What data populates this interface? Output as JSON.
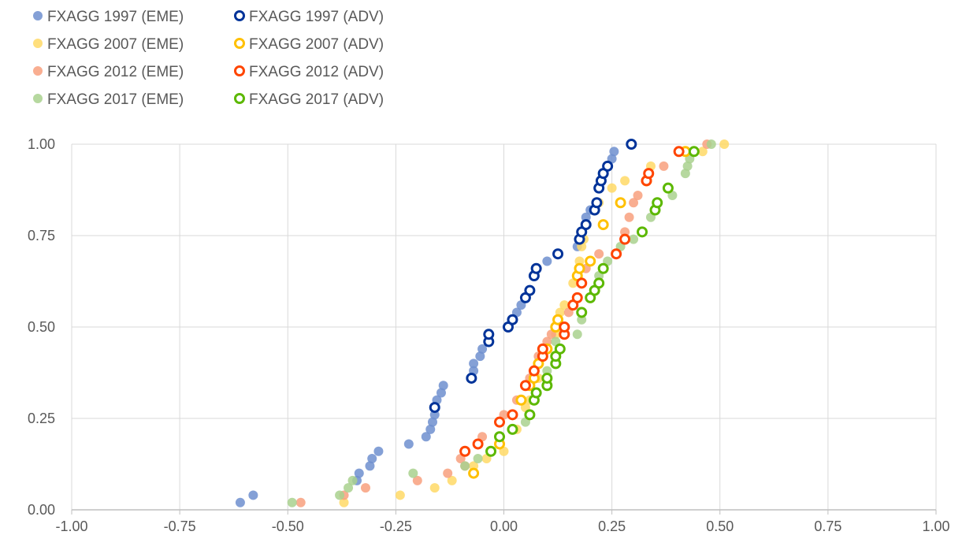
{
  "chart_data": {
    "type": "scatter",
    "title": "",
    "xlabel": "",
    "ylabel": "",
    "xlim": [
      -1.0,
      1.0
    ],
    "ylim": [
      0.0,
      1.0
    ],
    "xticks": [
      "-1.00",
      "-0.75",
      "-0.50",
      "-0.25",
      "0.00",
      "0.25",
      "0.50",
      "0.75",
      "1.00"
    ],
    "yticks": [
      "0.00",
      "0.25",
      "0.50",
      "0.75",
      "1.00"
    ],
    "grid": true,
    "legend_position": "top-left",
    "series": [
      {
        "name": "FXAGG 1997 (EME)",
        "color": "#6f8fcf",
        "marker": "filled",
        "points": [
          [
            -0.61,
            0.02
          ],
          [
            -0.58,
            0.04
          ],
          [
            -0.34,
            0.08
          ],
          [
            -0.335,
            0.1
          ],
          [
            -0.31,
            0.12
          ],
          [
            -0.305,
            0.14
          ],
          [
            -0.29,
            0.16
          ],
          [
            -0.22,
            0.18
          ],
          [
            -0.18,
            0.2
          ],
          [
            -0.17,
            0.22
          ],
          [
            -0.165,
            0.24
          ],
          [
            -0.16,
            0.26
          ],
          [
            -0.155,
            0.3
          ],
          [
            -0.145,
            0.32
          ],
          [
            -0.14,
            0.34
          ],
          [
            -0.07,
            0.38
          ],
          [
            -0.07,
            0.4
          ],
          [
            -0.055,
            0.42
          ],
          [
            -0.05,
            0.44
          ],
          [
            0.03,
            0.54
          ],
          [
            0.04,
            0.56
          ],
          [
            0.1,
            0.68
          ],
          [
            0.17,
            0.72
          ],
          [
            0.19,
            0.8
          ],
          [
            0.2,
            0.82
          ],
          [
            0.25,
            0.96
          ],
          [
            0.255,
            0.98
          ]
        ]
      },
      {
        "name": "FXAGG 1997 (ADV)",
        "color": "#003399",
        "marker": "ring",
        "points": [
          [
            -0.16,
            0.28
          ],
          [
            -0.075,
            0.36
          ],
          [
            -0.035,
            0.46
          ],
          [
            -0.035,
            0.48
          ],
          [
            0.01,
            0.5
          ],
          [
            0.02,
            0.52
          ],
          [
            0.05,
            0.58
          ],
          [
            0.06,
            0.6
          ],
          [
            0.07,
            0.64
          ],
          [
            0.075,
            0.66
          ],
          [
            0.125,
            0.7
          ],
          [
            0.175,
            0.74
          ],
          [
            0.18,
            0.76
          ],
          [
            0.19,
            0.78
          ],
          [
            0.21,
            0.82
          ],
          [
            0.215,
            0.84
          ],
          [
            0.22,
            0.88
          ],
          [
            0.225,
            0.9
          ],
          [
            0.23,
            0.92
          ],
          [
            0.24,
            0.94
          ],
          [
            0.295,
            1.0
          ]
        ]
      },
      {
        "name": "FXAGG 2007 (EME)",
        "color": "#ffd966",
        "marker": "filled",
        "points": [
          [
            -0.37,
            0.02
          ],
          [
            -0.24,
            0.04
          ],
          [
            -0.16,
            0.06
          ],
          [
            -0.12,
            0.08
          ],
          [
            -0.07,
            0.12
          ],
          [
            -0.04,
            0.14
          ],
          [
            0.0,
            0.16
          ],
          [
            0.03,
            0.22
          ],
          [
            0.05,
            0.28
          ],
          [
            0.06,
            0.3
          ],
          [
            0.08,
            0.36
          ],
          [
            0.1,
            0.44
          ],
          [
            0.12,
            0.48
          ],
          [
            0.13,
            0.54
          ],
          [
            0.14,
            0.56
          ],
          [
            0.16,
            0.62
          ],
          [
            0.175,
            0.68
          ],
          [
            0.18,
            0.72
          ],
          [
            0.185,
            0.74
          ],
          [
            0.22,
            0.84
          ],
          [
            0.25,
            0.88
          ],
          [
            0.28,
            0.9
          ],
          [
            0.34,
            0.94
          ],
          [
            0.46,
            0.98
          ],
          [
            0.51,
            1.0
          ]
        ]
      },
      {
        "name": "FXAGG 2007 (ADV)",
        "color": "#ffc000",
        "marker": "ring",
        "points": [
          [
            -0.07,
            0.1
          ],
          [
            -0.01,
            0.18
          ],
          [
            0.04,
            0.3
          ],
          [
            0.06,
            0.34
          ],
          [
            0.07,
            0.36
          ],
          [
            0.08,
            0.4
          ],
          [
            0.1,
            0.44
          ],
          [
            0.12,
            0.5
          ],
          [
            0.125,
            0.52
          ],
          [
            0.17,
            0.64
          ],
          [
            0.175,
            0.66
          ],
          [
            0.2,
            0.68
          ],
          [
            0.23,
            0.78
          ],
          [
            0.27,
            0.84
          ],
          [
            0.33,
            0.9
          ],
          [
            0.42,
            0.98
          ]
        ]
      },
      {
        "name": "FXAGG 2012 (EME)",
        "color": "#f8a07e",
        "marker": "filled",
        "points": [
          [
            -0.47,
            0.02
          ],
          [
            -0.37,
            0.04
          ],
          [
            -0.32,
            0.06
          ],
          [
            -0.2,
            0.08
          ],
          [
            -0.13,
            0.1
          ],
          [
            -0.09,
            0.12
          ],
          [
            -0.1,
            0.14
          ],
          [
            -0.05,
            0.2
          ],
          [
            0.0,
            0.26
          ],
          [
            0.03,
            0.3
          ],
          [
            0.06,
            0.36
          ],
          [
            0.08,
            0.42
          ],
          [
            0.1,
            0.46
          ],
          [
            0.11,
            0.48
          ],
          [
            0.15,
            0.54
          ],
          [
            0.16,
            0.56
          ],
          [
            0.19,
            0.66
          ],
          [
            0.2,
            0.68
          ],
          [
            0.22,
            0.7
          ],
          [
            0.28,
            0.76
          ],
          [
            0.29,
            0.8
          ],
          [
            0.3,
            0.84
          ],
          [
            0.31,
            0.86
          ],
          [
            0.37,
            0.94
          ],
          [
            0.47,
            1.0
          ]
        ]
      },
      {
        "name": "FXAGG 2012 (ADV)",
        "color": "#ff4500",
        "marker": "ring",
        "points": [
          [
            -0.09,
            0.16
          ],
          [
            -0.06,
            0.18
          ],
          [
            -0.01,
            0.24
          ],
          [
            0.02,
            0.26
          ],
          [
            0.05,
            0.34
          ],
          [
            0.07,
            0.38
          ],
          [
            0.09,
            0.42
          ],
          [
            0.09,
            0.44
          ],
          [
            0.14,
            0.48
          ],
          [
            0.14,
            0.5
          ],
          [
            0.16,
            0.56
          ],
          [
            0.17,
            0.58
          ],
          [
            0.18,
            0.62
          ],
          [
            0.26,
            0.7
          ],
          [
            0.28,
            0.74
          ],
          [
            0.33,
            0.9
          ],
          [
            0.335,
            0.92
          ],
          [
            0.405,
            0.98
          ]
        ]
      },
      {
        "name": "FXAGG 2017 (EME)",
        "color": "#a9d18e",
        "marker": "filled",
        "points": [
          [
            -0.49,
            0.02
          ],
          [
            -0.38,
            0.04
          ],
          [
            -0.36,
            0.06
          ],
          [
            -0.35,
            0.08
          ],
          [
            -0.21,
            0.1
          ],
          [
            -0.09,
            0.12
          ],
          [
            -0.06,
            0.14
          ],
          [
            0.02,
            0.22
          ],
          [
            0.05,
            0.24
          ],
          [
            0.07,
            0.3
          ],
          [
            0.1,
            0.38
          ],
          [
            0.12,
            0.46
          ],
          [
            0.17,
            0.48
          ],
          [
            0.18,
            0.52
          ],
          [
            0.22,
            0.64
          ],
          [
            0.24,
            0.68
          ],
          [
            0.27,
            0.72
          ],
          [
            0.3,
            0.74
          ],
          [
            0.34,
            0.8
          ],
          [
            0.39,
            0.86
          ],
          [
            0.42,
            0.92
          ],
          [
            0.425,
            0.94
          ],
          [
            0.43,
            0.96
          ],
          [
            0.48,
            1.0
          ]
        ]
      },
      {
        "name": "FXAGG 2017 (ADV)",
        "color": "#5cb800",
        "marker": "ring",
        "points": [
          [
            -0.03,
            0.16
          ],
          [
            -0.01,
            0.2
          ],
          [
            0.02,
            0.22
          ],
          [
            0.06,
            0.26
          ],
          [
            0.07,
            0.3
          ],
          [
            0.075,
            0.32
          ],
          [
            0.1,
            0.34
          ],
          [
            0.1,
            0.36
          ],
          [
            0.12,
            0.4
          ],
          [
            0.12,
            0.42
          ],
          [
            0.13,
            0.44
          ],
          [
            0.18,
            0.54
          ],
          [
            0.2,
            0.58
          ],
          [
            0.21,
            0.6
          ],
          [
            0.22,
            0.62
          ],
          [
            0.23,
            0.66
          ],
          [
            0.32,
            0.76
          ],
          [
            0.35,
            0.82
          ],
          [
            0.355,
            0.84
          ],
          [
            0.38,
            0.88
          ],
          [
            0.44,
            0.98
          ]
        ]
      }
    ]
  }
}
